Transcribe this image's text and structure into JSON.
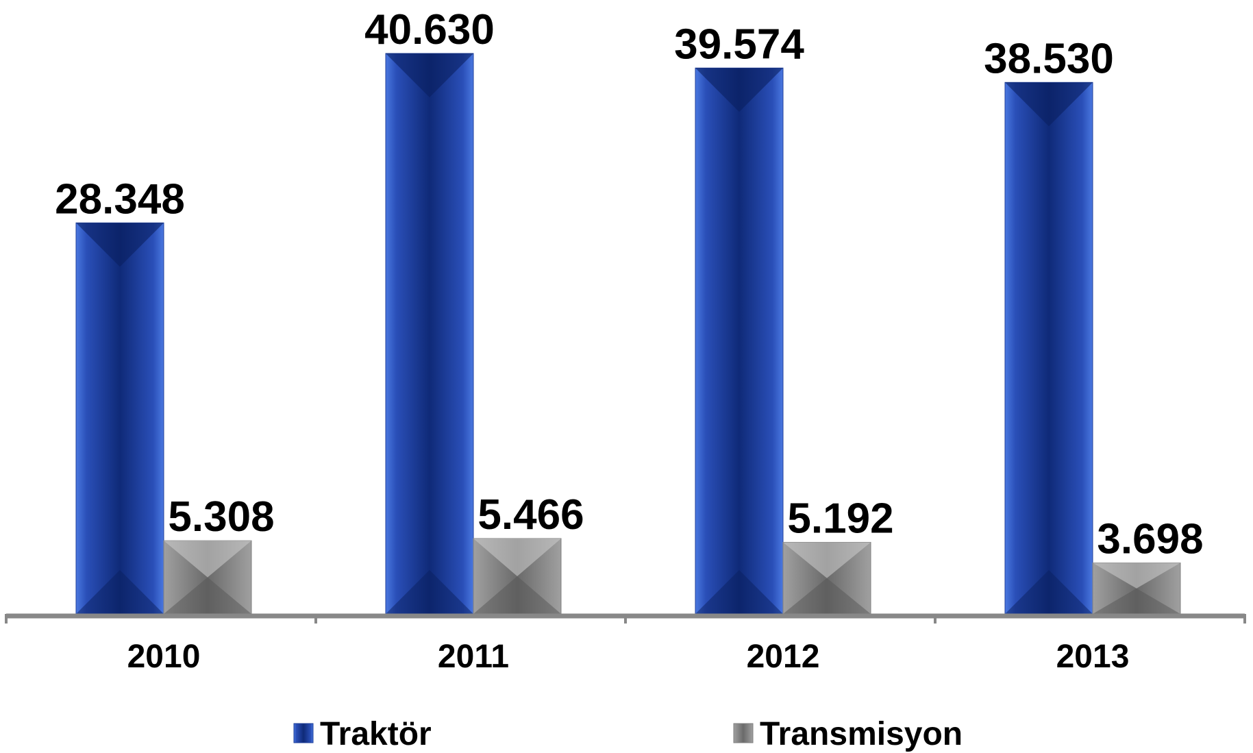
{
  "chart_data": {
    "type": "bar",
    "categories": [
      "2010",
      "2011",
      "2012",
      "2013"
    ],
    "series": [
      {
        "name": "Traktör",
        "color": "#1f3f99",
        "values": [
          28348,
          40630,
          39574,
          38530
        ],
        "value_labels": [
          "28.348",
          "40.630",
          "39.574",
          "38.530"
        ]
      },
      {
        "name": "Transmisyon",
        "color": "#7f7f7f",
        "values": [
          5308,
          5466,
          5192,
          3698
        ],
        "value_labels": [
          "5.308",
          "5.466",
          "5.192",
          "3.698"
        ]
      }
    ],
    "legend": "bottom"
  }
}
